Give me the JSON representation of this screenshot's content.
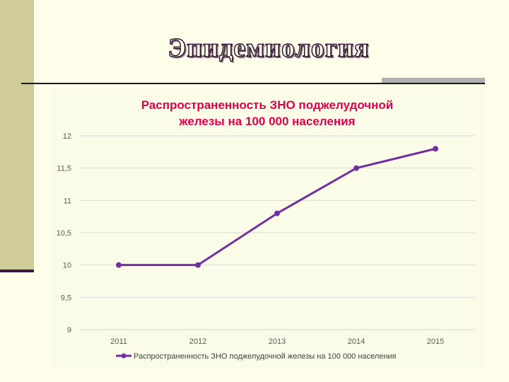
{
  "slide": {
    "title": "Эпидемиология"
  },
  "colors": {
    "series": "#7030a0",
    "grid": "#d9d9d9",
    "title": "#e0004d",
    "axis_text": "#595959"
  },
  "chart_data": {
    "type": "line",
    "title": "Распространенность ЗНО поджелудочной железы на 100 000 населения",
    "title_lines": [
      "Распространенность ЗНО поджелудочной",
      "железы на 100 000 населения"
    ],
    "categories": [
      "2011",
      "2012",
      "2013",
      "2014",
      "2015"
    ],
    "y_ticks": [
      "9",
      "9,5",
      "10",
      "10,5",
      "11",
      "11,5",
      "12"
    ],
    "ylim": [
      9,
      12
    ],
    "grid": true,
    "legend_position": "bottom",
    "series": [
      {
        "name": "Распространенность ЗНО поджелудочной железы на 100 000 населения",
        "values": [
          10,
          10,
          10.8,
          11.5,
          11.8
        ]
      }
    ],
    "xlabel": "",
    "ylabel": ""
  }
}
